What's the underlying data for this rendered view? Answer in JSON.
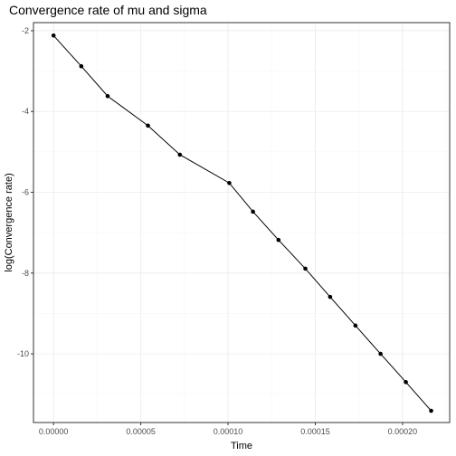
{
  "chart_data": {
    "type": "line",
    "title": "Convergence rate of mu and sigma",
    "xlabel": "Time",
    "ylabel": "log(Convergence rate)",
    "xlim": [
      -1.15e-05,
      0.000227
    ],
    "ylim": [
      -11.7,
      -1.8
    ],
    "x_ticks": [
      0,
      5e-05,
      0.0001,
      0.00015,
      0.0002
    ],
    "x_tick_labels": [
      "0.00000",
      "0.00005",
      "0.00010",
      "0.00015",
      "0.00020"
    ],
    "y_ticks": [
      -10,
      -8,
      -6,
      -4,
      -2
    ],
    "y_tick_labels": [
      "-10",
      "-8",
      "-6",
      "-4",
      "-2"
    ],
    "grid": true,
    "legend": "none",
    "series": [
      {
        "color": "#000000",
        "x": [
          0,
          1.59e-05,
          3.1e-05,
          5.41e-05,
          7.24e-05,
          0.0001007,
          0.0001143,
          0.0001289,
          0.0001443,
          0.0001585,
          0.000173,
          0.0001874,
          0.0002019,
          0.0002164
        ],
        "y": [
          -2.12,
          -2.88,
          -3.62,
          -4.35,
          -5.07,
          -5.77,
          -6.48,
          -7.18,
          -7.89,
          -8.59,
          -9.3,
          -10.0,
          -10.7,
          -11.41
        ]
      }
    ]
  }
}
